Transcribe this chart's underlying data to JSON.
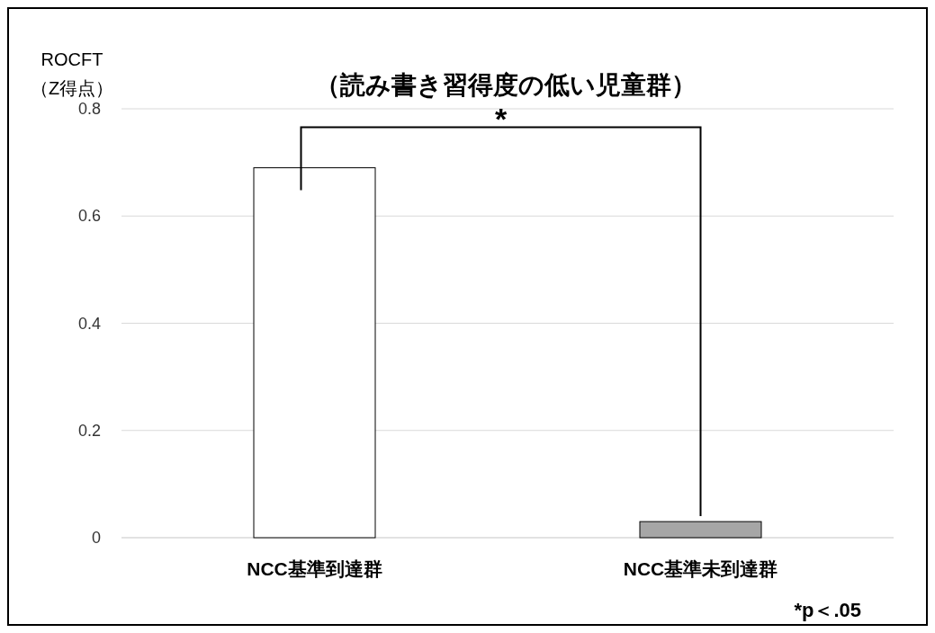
{
  "chart_data": {
    "type": "bar",
    "title": "（読み書き習得度の低い児童群）",
    "ylabel": "ROCFT\n（Z得点）",
    "categories": [
      "NCC基準到達群",
      "NCC基準未到達群"
    ],
    "values": [
      0.69,
      0.03
    ],
    "colors": [
      "#ffffff",
      "#a6a6a6"
    ],
    "ylim": [
      0,
      0.8
    ],
    "yticks": [
      0,
      0.2,
      0.4,
      0.6,
      0.8
    ],
    "grid": "y",
    "annotations": [
      "*",
      "*p＜.05"
    ]
  }
}
